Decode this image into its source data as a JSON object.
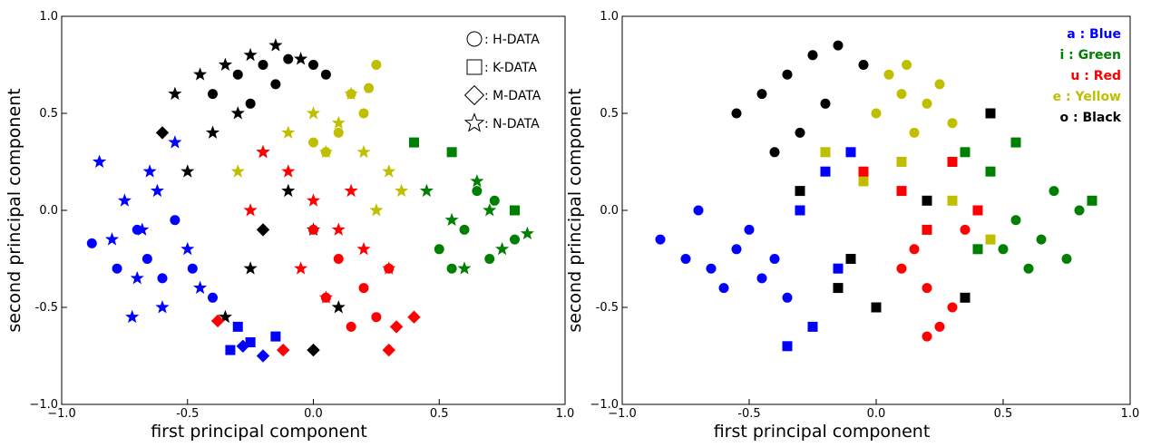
{
  "chart_data": [
    {
      "type": "scatter",
      "xlabel": "first principal component",
      "ylabel": "second principal component",
      "xlim": [
        -1.0,
        1.0
      ],
      "ylim": [
        -1.0,
        1.0
      ],
      "xticks": [
        {
          "value": -1.0,
          "label": "−1.0"
        },
        -0.5,
        {
          "value": 0.0,
          "label": "0.0"
        },
        0.5,
        {
          "value": 1.0,
          "label": "1.0"
        }
      ],
      "yticks": [
        {
          "value": -1.0,
          "label": "−1.0"
        },
        -0.5,
        {
          "value": 0.0,
          "label": "0.0"
        },
        0.5,
        {
          "value": 1.0,
          "label": "1.0"
        }
      ],
      "legend": [
        {
          "label": ": H-DATA",
          "marker": "circle"
        },
        {
          "label": ": K-DATA",
          "marker": "square"
        },
        {
          "label": ": M-DATA",
          "marker": "diamond"
        },
        {
          "label": ": N-DATA",
          "marker": "star"
        }
      ],
      "series": [
        {
          "marker": "star",
          "color": "#0000ff",
          "x": [
            -0.85,
            -0.8,
            -0.75,
            -0.7,
            -0.65,
            -0.6,
            -0.55,
            -0.5,
            -0.72,
            -0.62,
            -0.45,
            -0.68
          ],
          "y": [
            0.25,
            -0.15,
            0.05,
            -0.35,
            0.2,
            -0.5,
            0.35,
            -0.2,
            -0.55,
            0.1,
            -0.4,
            -0.1
          ]
        },
        {
          "marker": "circle",
          "color": "#0000ff",
          "x": [
            -0.88,
            -0.78,
            -0.66,
            -0.55,
            -0.48,
            -0.4,
            -0.7,
            -0.6
          ],
          "y": [
            -0.17,
            -0.3,
            -0.25,
            -0.05,
            -0.3,
            -0.45,
            -0.1,
            -0.35
          ]
        },
        {
          "marker": "square",
          "color": "#0000ff",
          "x": [
            -0.33,
            -0.25,
            -0.3,
            -0.15
          ],
          "y": [
            -0.72,
            -0.68,
            -0.6,
            -0.65
          ]
        },
        {
          "marker": "diamond",
          "color": "#0000ff",
          "x": [
            -0.2,
            -0.28
          ],
          "y": [
            -0.75,
            -0.7
          ]
        },
        {
          "marker": "star",
          "color": "#000000",
          "x": [
            -0.55,
            -0.45,
            -0.35,
            -0.25,
            -0.15,
            -0.05,
            -0.4,
            -0.3,
            -0.2,
            -0.1,
            -0.5,
            0.0,
            -0.25,
            0.1,
            -0.35
          ],
          "y": [
            0.6,
            0.7,
            0.75,
            0.8,
            0.85,
            0.78,
            0.4,
            0.5,
            0.3,
            0.1,
            0.2,
            -0.1,
            -0.3,
            -0.5,
            -0.55
          ]
        },
        {
          "marker": "circle",
          "color": "#000000",
          "x": [
            -0.4,
            -0.3,
            -0.2,
            -0.1,
            0.0,
            0.05,
            -0.25,
            -0.15
          ],
          "y": [
            0.6,
            0.7,
            0.75,
            0.78,
            0.75,
            0.7,
            0.55,
            0.65
          ]
        },
        {
          "marker": "diamond",
          "color": "#000000",
          "x": [
            -0.6,
            0.0,
            -0.2
          ],
          "y": [
            0.4,
            -0.72,
            -0.1
          ]
        },
        {
          "marker": "star",
          "color": "#bfbf00",
          "x": [
            -0.1,
            0.0,
            0.1,
            0.2,
            0.3,
            0.35,
            -0.3,
            0.25,
            0.15,
            0.05
          ],
          "y": [
            0.4,
            0.5,
            0.45,
            0.3,
            0.2,
            0.1,
            0.2,
            0.0,
            0.6,
            0.3
          ]
        },
        {
          "marker": "circle",
          "color": "#bfbf00",
          "x": [
            0.0,
            0.1,
            0.2,
            0.25,
            0.15,
            0.05,
            0.22
          ],
          "y": [
            0.35,
            0.4,
            0.5,
            0.75,
            0.6,
            0.3,
            0.63
          ]
        },
        {
          "marker": "star",
          "color": "#ff0000",
          "x": [
            -0.2,
            -0.1,
            0.0,
            0.1,
            0.2,
            -0.05,
            0.15,
            0.3,
            -0.25,
            0.05
          ],
          "y": [
            0.3,
            0.2,
            0.05,
            -0.1,
            -0.2,
            -0.3,
            0.1,
            -0.3,
            0.0,
            -0.45
          ]
        },
        {
          "marker": "circle",
          "color": "#ff0000",
          "x": [
            0.0,
            0.1,
            0.2,
            0.3,
            0.05,
            0.25,
            0.15
          ],
          "y": [
            -0.1,
            -0.25,
            -0.4,
            -0.3,
            -0.45,
            -0.55,
            -0.6
          ]
        },
        {
          "marker": "diamond",
          "color": "#ff0000",
          "x": [
            -0.38,
            -0.12,
            0.3,
            0.33,
            0.4
          ],
          "y": [
            -0.57,
            -0.72,
            -0.72,
            -0.6,
            -0.55
          ]
        },
        {
          "marker": "star",
          "color": "#008000",
          "x": [
            0.45,
            0.55,
            0.65,
            0.75,
            0.85,
            0.6,
            0.7
          ],
          "y": [
            0.1,
            -0.05,
            0.15,
            -0.2,
            -0.12,
            -0.3,
            0.0
          ]
        },
        {
          "marker": "circle",
          "color": "#008000",
          "x": [
            0.5,
            0.6,
            0.7,
            0.8,
            0.65,
            0.55,
            0.72
          ],
          "y": [
            -0.2,
            -0.1,
            -0.25,
            -0.15,
            0.1,
            -0.3,
            0.05
          ]
        },
        {
          "marker": "square",
          "color": "#008000",
          "x": [
            0.4,
            0.55,
            0.8
          ],
          "y": [
            0.35,
            0.3,
            0.0
          ]
        }
      ]
    },
    {
      "type": "scatter",
      "xlabel": "first principal component",
      "ylabel": "second principal component",
      "xlim": [
        -1.0,
        1.0
      ],
      "ylim": [
        -1.0,
        1.0
      ],
      "xticks": [
        {
          "value": -1.0,
          "label": "−1.0"
        },
        -0.5,
        {
          "value": 0.0,
          "label": "0.0"
        },
        0.5,
        {
          "value": 1.0,
          "label": "1.0"
        }
      ],
      "yticks": [
        {
          "value": -1.0,
          "label": "−1.0"
        },
        -0.5,
        {
          "value": 0.0,
          "label": "0.0"
        },
        0.5,
        {
          "value": 1.0,
          "label": "1.0"
        }
      ],
      "legend": [
        {
          "label": "a : Blue",
          "color": "#0000ff"
        },
        {
          "label": "i : Green",
          "color": "#008000"
        },
        {
          "label": "u : Red",
          "color": "#ff0000"
        },
        {
          "label": "e : Yellow",
          "color": "#bfbf00"
        },
        {
          "label": "o : Black",
          "color": "#000000"
        }
      ],
      "series": [
        {
          "marker": "circle",
          "color": "#0000ff",
          "x": [
            -0.85,
            -0.75,
            -0.65,
            -0.55,
            -0.45,
            -0.35,
            -0.7,
            -0.6,
            -0.5,
            -0.4
          ],
          "y": [
            -0.15,
            -0.25,
            -0.3,
            -0.2,
            -0.35,
            -0.45,
            0.0,
            -0.4,
            -0.1,
            -0.25
          ]
        },
        {
          "marker": "square",
          "color": "#0000ff",
          "x": [
            -0.35,
            -0.25,
            -0.2,
            -0.3,
            -0.15,
            -0.1
          ],
          "y": [
            -0.7,
            -0.6,
            0.2,
            0.0,
            -0.3,
            0.3
          ]
        },
        {
          "marker": "circle",
          "color": "#000000",
          "x": [
            -0.55,
            -0.45,
            -0.35,
            -0.25,
            -0.15,
            -0.05,
            -0.3,
            -0.2,
            -0.4
          ],
          "y": [
            0.5,
            0.6,
            0.7,
            0.8,
            0.85,
            0.75,
            0.4,
            0.55,
            0.3
          ]
        },
        {
          "marker": "square",
          "color": "#000000",
          "x": [
            -0.3,
            -0.15,
            0.0,
            0.2,
            0.45,
            0.35,
            -0.1
          ],
          "y": [
            0.1,
            -0.4,
            -0.5,
            0.05,
            0.5,
            -0.45,
            -0.25
          ]
        },
        {
          "marker": "circle",
          "color": "#bfbf00",
          "x": [
            0.0,
            0.05,
            0.1,
            0.15,
            0.2,
            0.25,
            0.3,
            0.12
          ],
          "y": [
            0.5,
            0.7,
            0.6,
            0.4,
            0.55,
            0.65,
            0.45,
            0.75
          ]
        },
        {
          "marker": "square",
          "color": "#bfbf00",
          "x": [
            -0.2,
            -0.05,
            0.1,
            0.3,
            0.45
          ],
          "y": [
            0.3,
            0.15,
            0.25,
            0.05,
            -0.15
          ]
        },
        {
          "marker": "circle",
          "color": "#ff0000",
          "x": [
            0.1,
            0.2,
            0.3,
            0.25,
            0.15,
            0.35,
            0.2
          ],
          "y": [
            -0.3,
            -0.4,
            -0.5,
            -0.6,
            -0.2,
            -0.1,
            -0.65
          ]
        },
        {
          "marker": "square",
          "color": "#ff0000",
          "x": [
            -0.05,
            0.1,
            0.3,
            0.4,
            0.2
          ],
          "y": [
            0.2,
            0.1,
            0.25,
            0.0,
            -0.1
          ]
        },
        {
          "marker": "circle",
          "color": "#008000",
          "x": [
            0.55,
            0.65,
            0.75,
            0.8,
            0.6,
            0.7,
            0.5
          ],
          "y": [
            -0.05,
            -0.15,
            -0.25,
            0.0,
            -0.3,
            0.1,
            -0.2
          ]
        },
        {
          "marker": "square",
          "color": "#008000",
          "x": [
            0.45,
            0.55,
            0.85,
            0.35,
            0.4
          ],
          "y": [
            0.2,
            0.35,
            0.05,
            0.3,
            -0.2
          ]
        }
      ]
    }
  ]
}
